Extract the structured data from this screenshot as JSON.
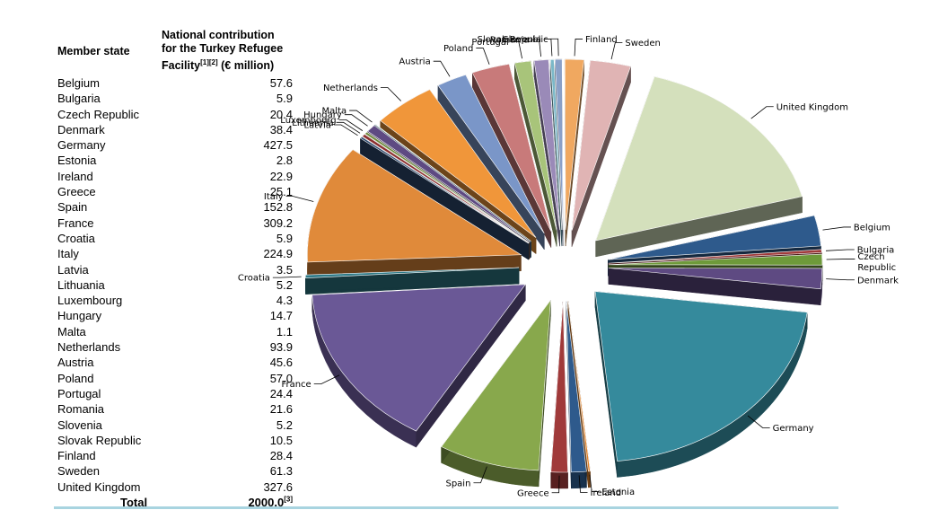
{
  "table": {
    "header_state": "Member state",
    "header_contrib_line1": "National contribution",
    "header_contrib_line2": "for the Turkey Refugee",
    "header_contrib_line3": "Facility",
    "header_contrib_sup": "[1][2]",
    "header_contrib_unit": " (€ million)",
    "rows": [
      {
        "name": "Belgium",
        "value": "57.6"
      },
      {
        "name": "Bulgaria",
        "value": "5.9"
      },
      {
        "name": "Czech Republic",
        "value": "20.4"
      },
      {
        "name": "Denmark",
        "value": "38.4"
      },
      {
        "name": "Germany",
        "value": "427.5"
      },
      {
        "name": "Estonia",
        "value": "2.8"
      },
      {
        "name": "Ireland",
        "value": "22.9"
      },
      {
        "name": "Greece",
        "value": "25.1"
      },
      {
        "name": "Spain",
        "value": "152.8"
      },
      {
        "name": "France",
        "value": "309.2"
      },
      {
        "name": "Croatia",
        "value": "5.9"
      },
      {
        "name": "Italy",
        "value": "224.9"
      },
      {
        "name": "Latvia",
        "value": "3.5"
      },
      {
        "name": "Lithuania",
        "value": "5.2"
      },
      {
        "name": "Luxembourg",
        "value": "4.3"
      },
      {
        "name": "Hungary",
        "value": "14.7"
      },
      {
        "name": "Malta",
        "value": "1.1"
      },
      {
        "name": "Netherlands",
        "value": "93.9"
      },
      {
        "name": "Austria",
        "value": "45.6"
      },
      {
        "name": "Poland",
        "value": "57.0"
      },
      {
        "name": "Portugal",
        "value": "24.4"
      },
      {
        "name": "Romania",
        "value": "21.6"
      },
      {
        "name": "Slovenia",
        "value": "5.2"
      },
      {
        "name": "Slovak Republic",
        "value": "10.5"
      },
      {
        "name": "Finland",
        "value": "28.4"
      },
      {
        "name": "Sweden",
        "value": "61.3"
      },
      {
        "name": "United Kingdom",
        "value": "327.6"
      }
    ],
    "total_label": "Total",
    "total_value": "2000.0",
    "total_sup": "[3]"
  },
  "chart_data": {
    "type": "pie",
    "title": "",
    "unit": "€ million",
    "start_slice": "Belgium",
    "slices": [
      {
        "label": "Belgium",
        "value": 57.6,
        "color": "#2e5a8c"
      },
      {
        "label": "Bulgaria",
        "value": 5.9,
        "color": "#a03a3a"
      },
      {
        "label": "Czech Republic",
        "value": 20.4,
        "color": "#6e9a3a"
      },
      {
        "label": "Denmark",
        "value": 38.4,
        "color": "#5e4a82"
      },
      {
        "label": "Germany",
        "value": 427.5,
        "color": "#358a9c"
      },
      {
        "label": "Estonia",
        "value": 2.8,
        "color": "#e0822a"
      },
      {
        "label": "Ireland",
        "value": 22.9,
        "color": "#2e5a8c"
      },
      {
        "label": "Greece",
        "value": 25.1,
        "color": "#a03a3a"
      },
      {
        "label": "Spain",
        "value": 152.8,
        "color": "#88a84c"
      },
      {
        "label": "France",
        "value": 309.2,
        "color": "#6a5896"
      },
      {
        "label": "Croatia",
        "value": 5.9,
        "color": "#2e7a88"
      },
      {
        "label": "Italy",
        "value": 224.9,
        "color": "#e08a3a"
      },
      {
        "label": "Latvia",
        "value": 3.5,
        "color": "#2e4a6e"
      },
      {
        "label": "Lithuania",
        "value": 5.2,
        "color": "#8c2e2e"
      },
      {
        "label": "Luxembourg",
        "value": 4.3,
        "color": "#6e8a3a"
      },
      {
        "label": "Hungary",
        "value": 14.7,
        "color": "#5e4a82"
      },
      {
        "label": "Malta",
        "value": 1.1,
        "color": "#2e7a88"
      },
      {
        "label": "Netherlands",
        "value": 93.9,
        "color": "#f0963a"
      },
      {
        "label": "Austria",
        "value": 45.6,
        "color": "#7a96c8"
      },
      {
        "label": "Poland",
        "value": 57.0,
        "color": "#c87a7a"
      },
      {
        "label": "Portugal",
        "value": 24.4,
        "color": "#a8c47a"
      },
      {
        "label": "Romania",
        "value": 21.6,
        "color": "#9a8ab8"
      },
      {
        "label": "Slovenia",
        "value": 5.2,
        "color": "#7ab8c8"
      },
      {
        "label": "Slovak Republic",
        "value": 10.5,
        "color": "#8aa0c8"
      },
      {
        "label": "Finland",
        "value": 28.4,
        "color": "#f0a860"
      },
      {
        "label": "Sweden",
        "value": 61.3,
        "color": "#e0b4b4"
      },
      {
        "label": "United Kingdom",
        "value": 327.6,
        "color": "#d4e0bc"
      }
    ],
    "slice_labels": [
      "Belgium",
      "Bulgaria",
      "Czech Republic",
      "Denmark",
      "Germany",
      "Estonia",
      "Ireland",
      "Greece",
      "Spain",
      "France",
      "Croatia",
      "Italy",
      "Latvia",
      "Lithuania",
      "Luxembourg",
      "Hungary",
      "Malta",
      "Netherlands",
      "Austria",
      "Poland",
      "Portugal",
      "Romania",
      "Slovenia",
      "Slovak Republic",
      "Finland",
      "Sweden",
      "United Kingdom"
    ],
    "czech_label_lines": [
      "Czech",
      "Republic"
    ],
    "exploded": true,
    "style": "3d"
  }
}
